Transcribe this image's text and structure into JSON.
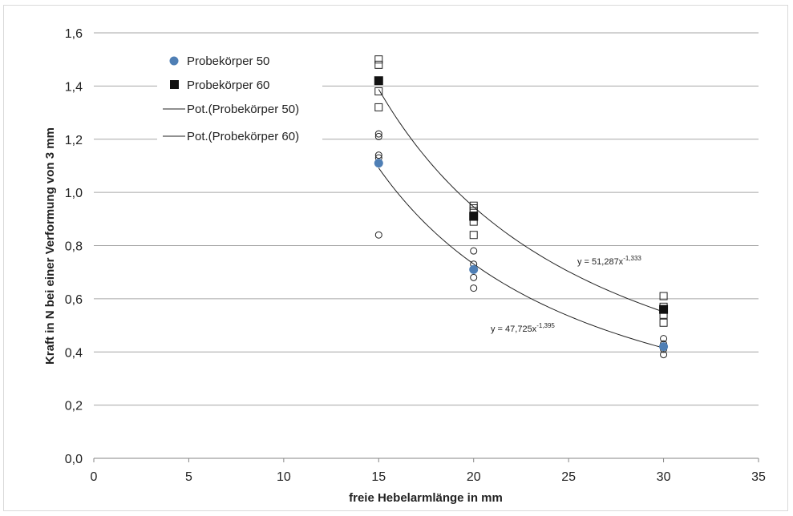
{
  "chart_data": {
    "type": "scatter",
    "title": "",
    "xlabel": "freie Hebelarmlänge in mm",
    "ylabel": "Kraft in N bei einer Verformung von 3 mm",
    "xlim": [
      0,
      35
    ],
    "ylim": [
      0,
      1.6
    ],
    "x_ticks": [
      "0",
      "5",
      "10",
      "15",
      "20",
      "25",
      "30",
      "35"
    ],
    "y_ticks": [
      "0,0",
      "0,2",
      "0,4",
      "0,6",
      "0,8",
      "1,0",
      "1,2",
      "1,4",
      "1,6"
    ],
    "grid": "horizontal",
    "legend_position": "top-left",
    "legend": [
      "Probekörper 50",
      "Probekörper 60",
      "Pot.(Probekörper 50)",
      "Pot.(Probekörper 60)"
    ],
    "series": [
      {
        "name": "Probekörper 50",
        "marker": "filled-circle",
        "color": "#4f7fb5",
        "points": [
          {
            "x": 15,
            "y": 1.11
          },
          {
            "x": 20,
            "y": 0.71
          },
          {
            "x": 30,
            "y": 0.42
          }
        ]
      },
      {
        "name": "Probekörper 60",
        "marker": "filled-square",
        "color": "#111111",
        "points": [
          {
            "x": 15,
            "y": 1.42
          },
          {
            "x": 20,
            "y": 0.91
          },
          {
            "x": 30,
            "y": 0.56
          }
        ]
      },
      {
        "marker": "open-circle",
        "color": "#222222",
        "points": [
          {
            "x": 15,
            "y": 1.22
          },
          {
            "x": 15,
            "y": 1.21
          },
          {
            "x": 15,
            "y": 1.14
          },
          {
            "x": 15,
            "y": 1.13
          },
          {
            "x": 15,
            "y": 0.84
          },
          {
            "x": 20,
            "y": 0.78
          },
          {
            "x": 20,
            "y": 0.73
          },
          {
            "x": 20,
            "y": 0.68
          },
          {
            "x": 20,
            "y": 0.64
          },
          {
            "x": 30,
            "y": 0.45
          },
          {
            "x": 30,
            "y": 0.43
          },
          {
            "x": 30,
            "y": 0.41
          },
          {
            "x": 30,
            "y": 0.39
          }
        ]
      },
      {
        "marker": "open-square",
        "color": "#222222",
        "points": [
          {
            "x": 15,
            "y": 1.5
          },
          {
            "x": 15,
            "y": 1.48
          },
          {
            "x": 15,
            "y": 1.38
          },
          {
            "x": 15,
            "y": 1.32
          },
          {
            "x": 20,
            "y": 0.95
          },
          {
            "x": 20,
            "y": 0.94
          },
          {
            "x": 20,
            "y": 0.93
          },
          {
            "x": 20,
            "y": 0.89
          },
          {
            "x": 20,
            "y": 0.84
          },
          {
            "x": 30,
            "y": 0.61
          },
          {
            "x": 30,
            "y": 0.57
          },
          {
            "x": 30,
            "y": 0.54
          },
          {
            "x": 30,
            "y": 0.51
          }
        ]
      }
    ],
    "trendlines": [
      {
        "name": "Pot.(Probekörper 50)",
        "kind": "power",
        "a": 47.725,
        "b": -1.395,
        "x_range": [
          15,
          30
        ],
        "equation_base": "y = 47,725x",
        "equation_exp": "-1,395"
      },
      {
        "name": "Pot.(Probekörper 60)",
        "kind": "power",
        "a": 51.287,
        "b": -1.333,
        "x_range": [
          15,
          30
        ],
        "equation_base": "y = 51,287x",
        "equation_exp": "-1,333"
      }
    ]
  }
}
